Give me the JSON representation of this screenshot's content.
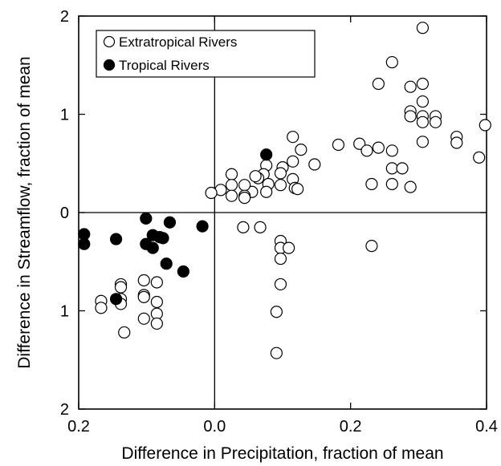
{
  "chart_data": {
    "type": "scatter",
    "xlabel": "Difference in Precipitation, fraction of mean",
    "ylabel": "Difference in Streamflow, fraction of mean",
    "xlim": [
      -0.2,
      0.4
    ],
    "ylim": [
      -2,
      2
    ],
    "x_ticks": [
      -0.2,
      0.0,
      0.2,
      0.4
    ],
    "x_tick_labels": [
      "0.2",
      "0.0",
      "0.2",
      "0.4"
    ],
    "y_ticks": [
      -2,
      -1,
      0,
      1,
      2
    ],
    "y_tick_labels": [
      "2",
      "1",
      "0",
      "1",
      "2"
    ],
    "grid": false,
    "zero_lines": true,
    "legend_position": "top-left",
    "series": [
      {
        "name": "Extratropical Rivers",
        "marker": "open-circle",
        "color": "#000000",
        "points": [
          [
            0.306,
            1.88
          ],
          [
            0.261,
            1.53
          ],
          [
            0.241,
            1.31
          ],
          [
            0.288,
            1.28
          ],
          [
            0.306,
            1.31
          ],
          [
            0.306,
            1.13
          ],
          [
            0.288,
            1.03
          ],
          [
            0.288,
            0.98
          ],
          [
            0.306,
            0.98
          ],
          [
            0.306,
            0.92
          ],
          [
            0.325,
            0.98
          ],
          [
            0.325,
            0.92
          ],
          [
            0.398,
            0.89
          ],
          [
            0.356,
            0.77
          ],
          [
            0.356,
            0.71
          ],
          [
            0.306,
            0.72
          ],
          [
            0.389,
            0.56
          ],
          [
            0.182,
            0.69
          ],
          [
            0.213,
            0.7
          ],
          [
            0.224,
            0.63
          ],
          [
            0.241,
            0.66
          ],
          [
            0.261,
            0.63
          ],
          [
            0.261,
            0.45
          ],
          [
            0.276,
            0.45
          ],
          [
            0.261,
            0.29
          ],
          [
            0.231,
            0.29
          ],
          [
            0.288,
            0.26
          ],
          [
            0.115,
            0.77
          ],
          [
            0.127,
            0.64
          ],
          [
            0.115,
            0.52
          ],
          [
            0.147,
            0.49
          ],
          [
            0.1,
            0.46
          ],
          [
            0.097,
            0.4
          ],
          [
            0.115,
            0.34
          ],
          [
            0.097,
            0.28
          ],
          [
            0.118,
            0.25
          ],
          [
            0.122,
            0.24
          ],
          [
            0.076,
            0.48
          ],
          [
            0.072,
            0.39
          ],
          [
            0.064,
            0.35
          ],
          [
            0.06,
            0.37
          ],
          [
            0.079,
            0.29
          ],
          [
            0.076,
            0.21
          ],
          [
            0.055,
            0.21
          ],
          [
            0.044,
            0.28
          ],
          [
            0.044,
            0.17
          ],
          [
            0.044,
            0.15
          ],
          [
            0.025,
            0.39
          ],
          [
            0.025,
            0.28
          ],
          [
            0.025,
            0.17
          ],
          [
            0.009,
            0.23
          ],
          [
            -0.005,
            0.2
          ],
          [
            0.042,
            -0.15
          ],
          [
            0.067,
            -0.15
          ],
          [
            0.097,
            -0.29
          ],
          [
            0.097,
            -0.36
          ],
          [
            0.109,
            -0.36
          ],
          [
            0.097,
            -0.47
          ],
          [
            0.097,
            -0.73
          ],
          [
            0.091,
            -1.01
          ],
          [
            0.091,
            -1.43
          ],
          [
            0.231,
            -0.34
          ],
          [
            -0.167,
            -0.9
          ],
          [
            -0.167,
            -0.97
          ],
          [
            -0.138,
            -0.73
          ],
          [
            -0.138,
            -0.76
          ],
          [
            -0.138,
            -0.88
          ],
          [
            -0.138,
            -0.93
          ],
          [
            -0.104,
            -0.69
          ],
          [
            -0.104,
            -0.84
          ],
          [
            -0.104,
            -0.86
          ],
          [
            -0.104,
            -1.08
          ],
          [
            -0.085,
            -0.71
          ],
          [
            -0.085,
            -0.91
          ],
          [
            -0.085,
            -1.03
          ],
          [
            -0.085,
            -1.13
          ],
          [
            -0.133,
            -1.22
          ]
        ]
      },
      {
        "name": "Tropical Rivers",
        "marker": "filled-circle",
        "color": "#000000",
        "points": [
          [
            0.076,
            0.59
          ],
          [
            -0.101,
            -0.06
          ],
          [
            -0.066,
            -0.1
          ],
          [
            -0.018,
            -0.14
          ],
          [
            -0.091,
            -0.23
          ],
          [
            -0.081,
            -0.25
          ],
          [
            -0.076,
            -0.26
          ],
          [
            -0.101,
            -0.32
          ],
          [
            -0.091,
            -0.36
          ],
          [
            -0.071,
            -0.52
          ],
          [
            -0.046,
            -0.6
          ],
          [
            -0.192,
            -0.22
          ],
          [
            -0.192,
            -0.32
          ],
          [
            -0.145,
            -0.27
          ],
          [
            -0.145,
            -0.88
          ]
        ]
      }
    ]
  }
}
